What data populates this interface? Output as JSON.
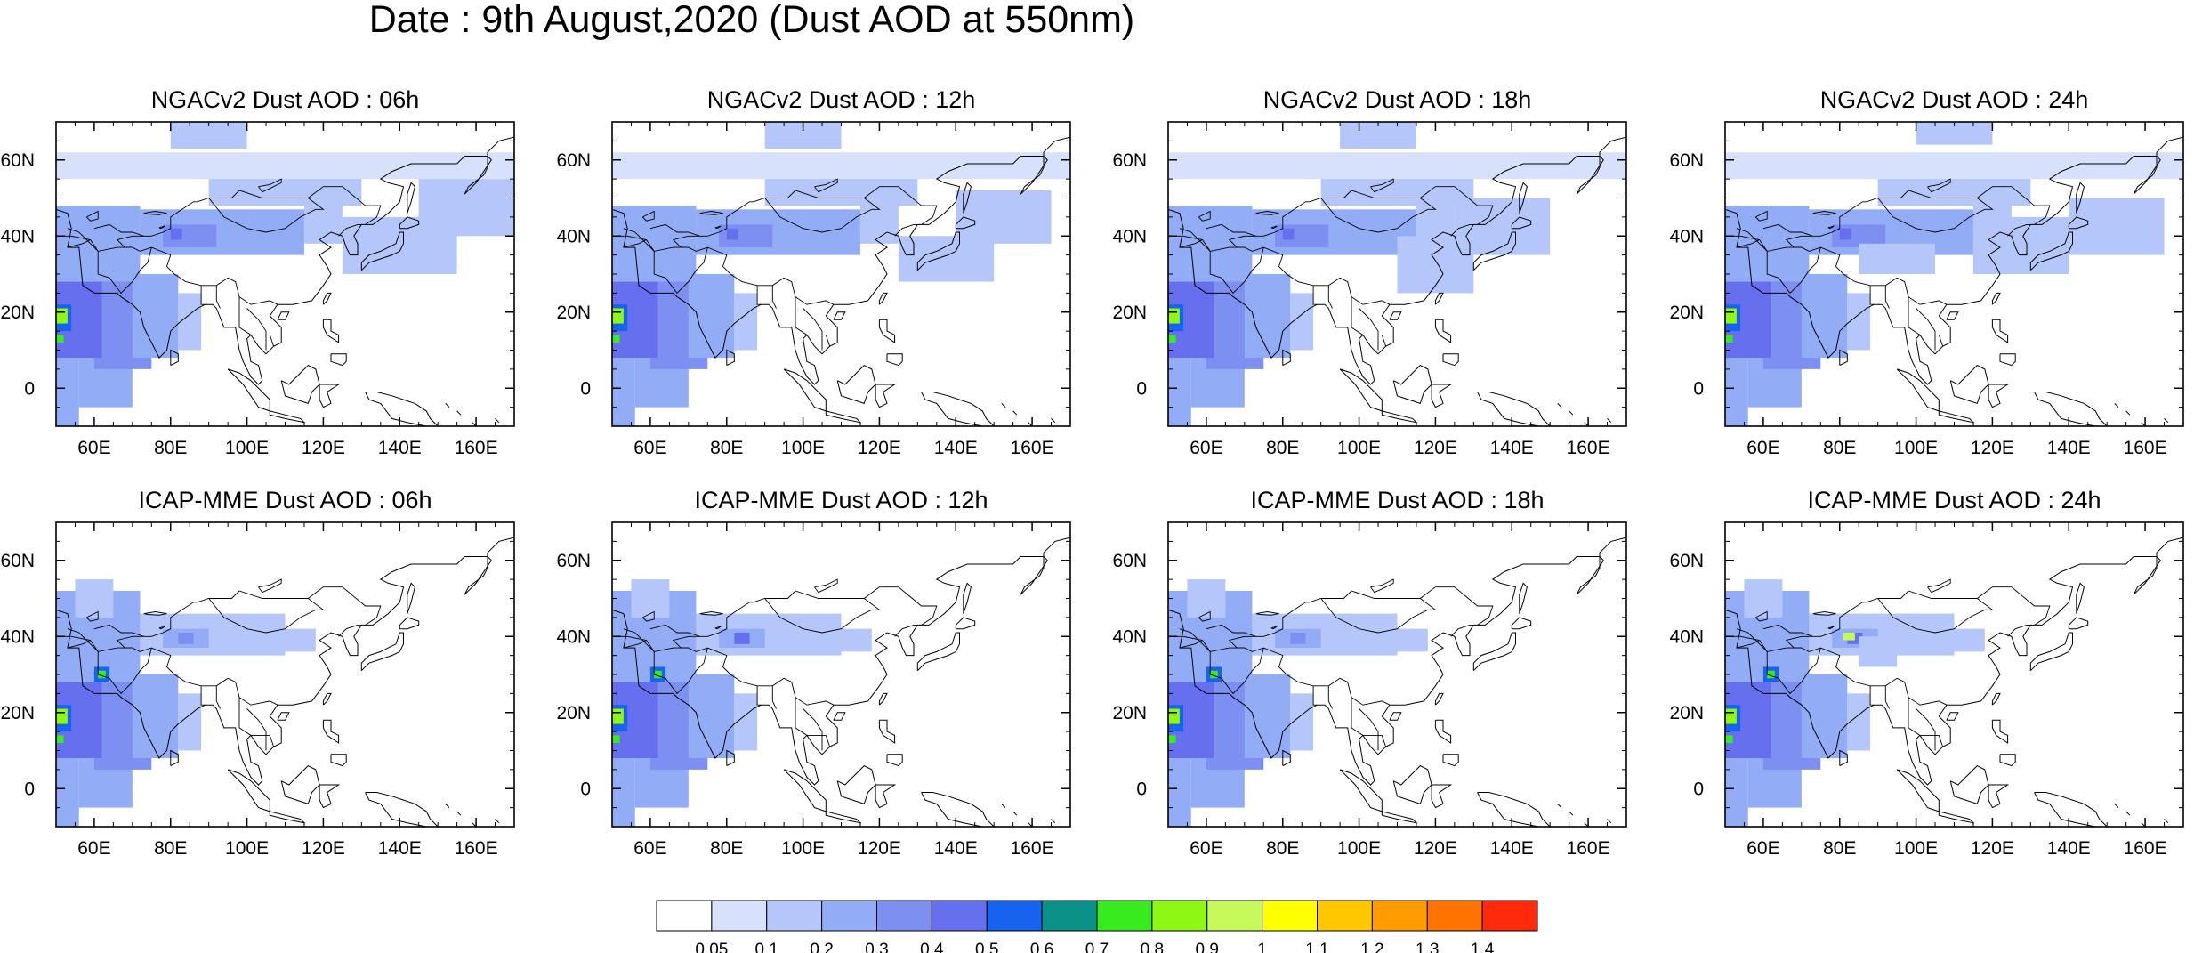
{
  "title": "Date : 9th August,2020 (Dust AOD at 550nm)",
  "panels": [
    {
      "title": "NGACv2 Dust AOD : 06h",
      "model": "NGACv2",
      "hour": "06h"
    },
    {
      "title": "NGACv2 Dust AOD : 12h",
      "model": "NGACv2",
      "hour": "12h"
    },
    {
      "title": "NGACv2 Dust AOD : 18h",
      "model": "NGACv2",
      "hour": "18h"
    },
    {
      "title": "NGACv2 Dust AOD : 24h",
      "model": "NGACv2",
      "hour": "24h"
    },
    {
      "title": "ICAP-MME Dust AOD : 06h",
      "model": "ICAP-MME",
      "hour": "06h"
    },
    {
      "title": "ICAP-MME Dust AOD : 12h",
      "model": "ICAP-MME",
      "hour": "12h"
    },
    {
      "title": "ICAP-MME Dust AOD : 18h",
      "model": "ICAP-MME",
      "hour": "18h"
    },
    {
      "title": "ICAP-MME Dust AOD : 24h",
      "model": "ICAP-MME",
      "hour": "24h"
    }
  ],
  "axes": {
    "lon_ticks": [
      "60E",
      "80E",
      "100E",
      "120E",
      "140E",
      "160E"
    ],
    "lon_values": [
      60,
      80,
      100,
      120,
      140,
      160
    ],
    "lat_ticks": [
      "60N",
      "40N",
      "20N",
      "0"
    ],
    "lat_values": [
      60,
      40,
      20,
      0
    ],
    "lon_range": [
      50,
      170
    ],
    "lat_range": [
      -10,
      70
    ]
  },
  "colorbar": {
    "labels": [
      "0.05",
      "0.1",
      "0.2",
      "0.3",
      "0.4",
      "0.5",
      "0.6",
      "0.7",
      "0.8",
      "0.9",
      "1",
      "1.1",
      "1.2",
      "1.3",
      "1.4"
    ],
    "colors": [
      "#ffffff",
      "#d7e1fc",
      "#b4c6fa",
      "#93acf6",
      "#7e8ff2",
      "#6670ee",
      "#1663f0",
      "#0b9188",
      "#38eb1f",
      "#8ef713",
      "#c6f95a",
      "#ffff00",
      "#ffc700",
      "#ff9c00",
      "#ff7300",
      "#ff2a0c"
    ]
  }
}
